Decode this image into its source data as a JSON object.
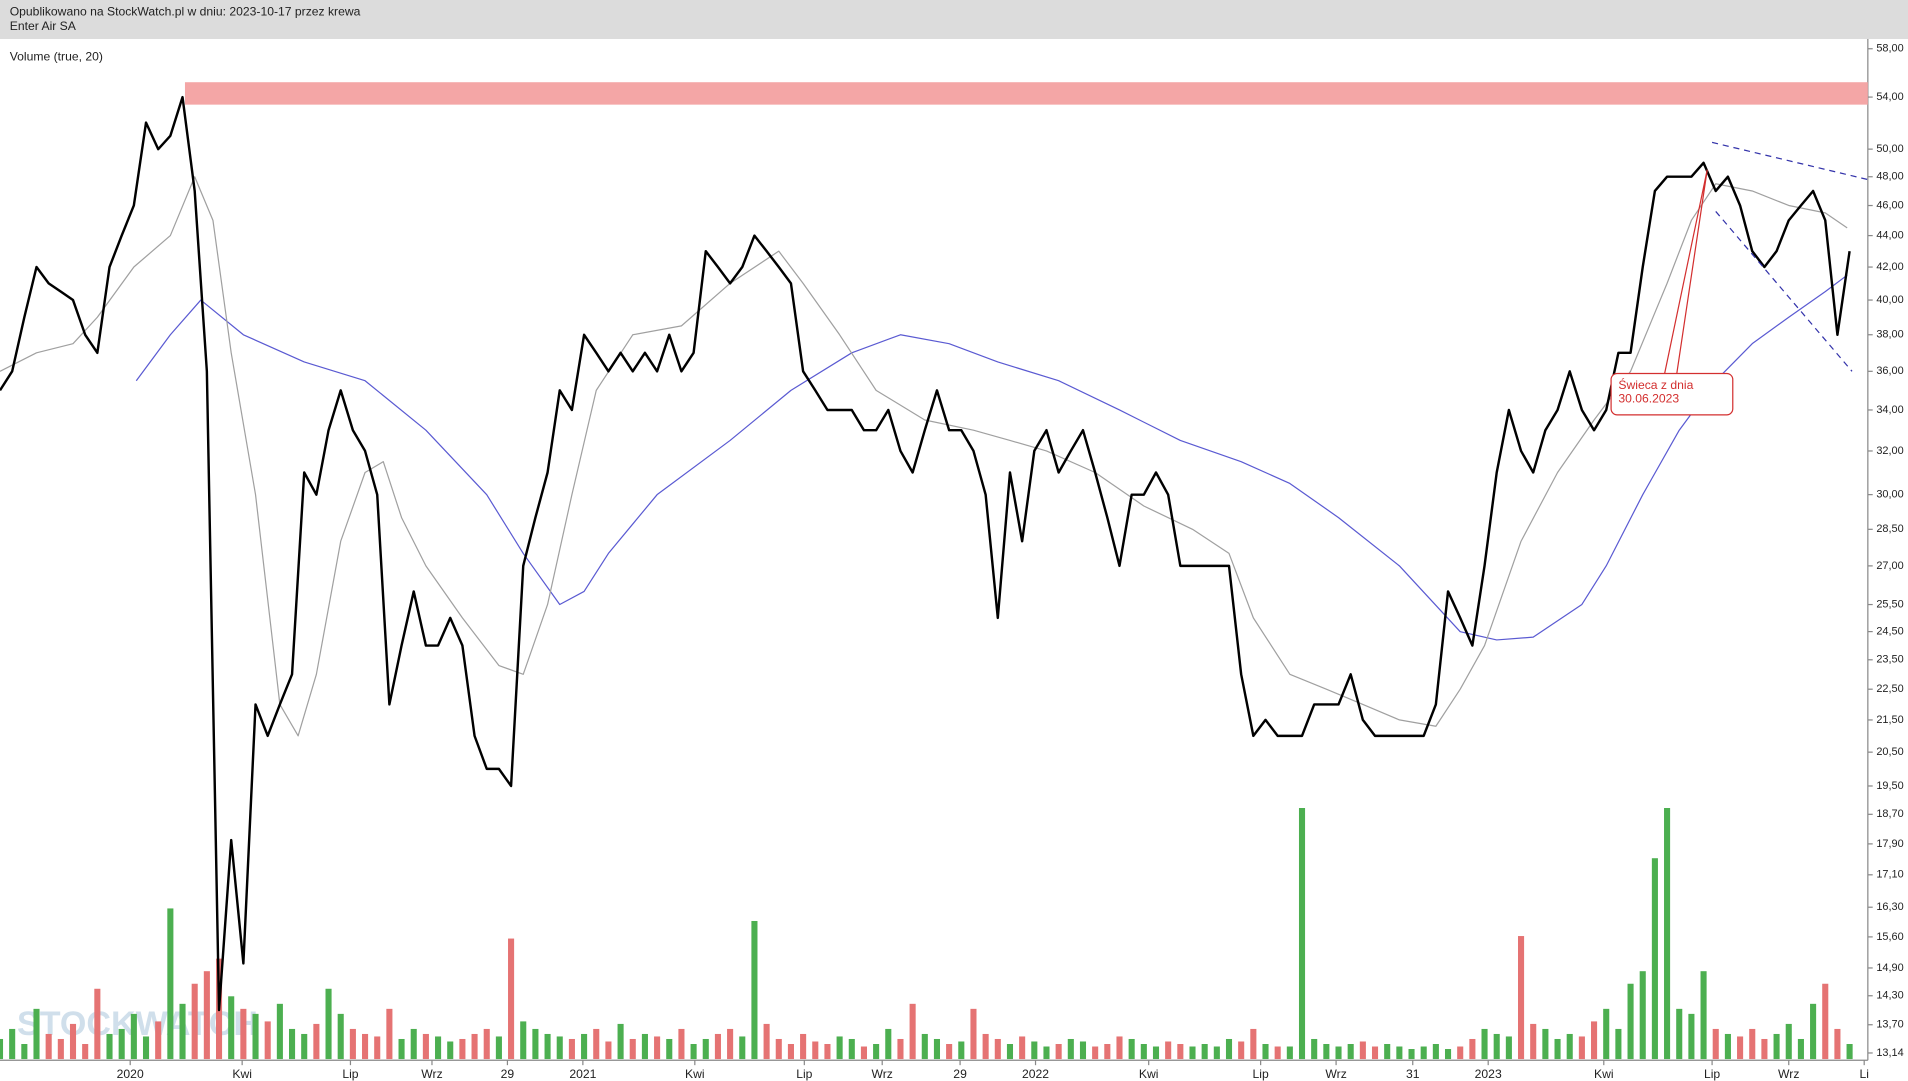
{
  "header": {
    "line1": "Opublikowano na StockWatch.pl w dniu: 2023-10-17 przez krewa",
    "line2": "Enter Air SA"
  },
  "chart_data": {
    "type": "line",
    "indicator": "Volume (true, 20)",
    "watermark": "STOCKWATCH",
    "log_y": true,
    "ylim": [
      13.14,
      58
    ],
    "xlim": [
      0,
      153.5
    ],
    "yticks": [
      {
        "value": 58,
        "label": "58,00"
      },
      {
        "value": 54,
        "label": "54,00"
      },
      {
        "value": 50,
        "label": "50,00"
      },
      {
        "value": 48,
        "label": "48,00"
      },
      {
        "value": 46,
        "label": "46,00"
      },
      {
        "value": 44,
        "label": "44,00"
      },
      {
        "value": 42,
        "label": "42,00"
      },
      {
        "value": 40,
        "label": "40,00"
      },
      {
        "value": 38,
        "label": "38,00"
      },
      {
        "value": 36,
        "label": "36,00"
      },
      {
        "value": 34,
        "label": "34,00"
      },
      {
        "value": 32,
        "label": "32,00"
      },
      {
        "value": 30,
        "label": "30,00"
      },
      {
        "value": 28.5,
        "label": "28,50"
      },
      {
        "value": 27,
        "label": "27,00"
      },
      {
        "value": 25.5,
        "label": "25,50"
      },
      {
        "value": 24.5,
        "label": "24,50"
      },
      {
        "value": 23.5,
        "label": "23,50"
      },
      {
        "value": 22.5,
        "label": "22,50"
      },
      {
        "value": 21.5,
        "label": "21,50"
      },
      {
        "value": 20.5,
        "label": "20,50"
      },
      {
        "value": 19.5,
        "label": "19,50"
      },
      {
        "value": 18.7,
        "label": "18,70"
      },
      {
        "value": 17.9,
        "label": "17,90"
      },
      {
        "value": 17.1,
        "label": "17,10"
      },
      {
        "value": 16.3,
        "label": "16,30"
      },
      {
        "value": 15.6,
        "label": "15,60"
      },
      {
        "value": 14.9,
        "label": "14,90"
      },
      {
        "value": 14.3,
        "label": "14,30"
      },
      {
        "value": 13.7,
        "label": "13,70"
      },
      {
        "value": 13.14,
        "label": "13,14"
      }
    ],
    "xticks": [
      {
        "value": 10.7,
        "label": "2020"
      },
      {
        "value": 19.9,
        "label": "Kwi"
      },
      {
        "value": 28.8,
        "label": "Lip"
      },
      {
        "value": 35.5,
        "label": "Wrz"
      },
      {
        "value": 41.7,
        "label": "29"
      },
      {
        "value": 47.9,
        "label": "2021"
      },
      {
        "value": 57.1,
        "label": "Kwi"
      },
      {
        "value": 66.1,
        "label": "Lip"
      },
      {
        "value": 72.5,
        "label": "Wrz"
      },
      {
        "value": 78.9,
        "label": "29"
      },
      {
        "value": 85.1,
        "label": "2022"
      },
      {
        "value": 94.4,
        "label": "Kwi"
      },
      {
        "value": 103.6,
        "label": "Lip"
      },
      {
        "value": 109.8,
        "label": "Wrz"
      },
      {
        "value": 116.1,
        "label": "31"
      },
      {
        "value": 122.3,
        "label": "2023"
      },
      {
        "value": 131.8,
        "label": "Kwi"
      },
      {
        "value": 140.7,
        "label": "Lip"
      },
      {
        "value": 147,
        "label": "Wrz"
      },
      {
        "value": 153.2,
        "label": "Li"
      }
    ],
    "series": [
      {
        "color": "#000000",
        "width": 2,
        "values": [
          35,
          36,
          39,
          42,
          41,
          40.5,
          40,
          38,
          37,
          42,
          44,
          46,
          52,
          50,
          51,
          54,
          47,
          36,
          14,
          18,
          15,
          22,
          21,
          22,
          23,
          31,
          30,
          33,
          35,
          33,
          32,
          30,
          22,
          24,
          26,
          24,
          24,
          25,
          24,
          21,
          20,
          20,
          19.5,
          27,
          29,
          31,
          35,
          34,
          38,
          37,
          36,
          37,
          36,
          37,
          36,
          38,
          36,
          37,
          43,
          42,
          41,
          42,
          44,
          43,
          42,
          41,
          36,
          35,
          34,
          34,
          34,
          33,
          33,
          34,
          32,
          31,
          33,
          35,
          33,
          33,
          32,
          30,
          25,
          31,
          28,
          32,
          33,
          31,
          32,
          33,
          31,
          29,
          27,
          30,
          30,
          31,
          30,
          27,
          27,
          27,
          27,
          27,
          23,
          21,
          21.5,
          21,
          21,
          21,
          22,
          22,
          22,
          23,
          21.5,
          21,
          21,
          21,
          21,
          21,
          22,
          26,
          25,
          24,
          27,
          31,
          34,
          32,
          31,
          33,
          34,
          36,
          34,
          33,
          34,
          37,
          37,
          42,
          47,
          48,
          48,
          48,
          49,
          47,
          48,
          46,
          43,
          42,
          43,
          45,
          46,
          47,
          45,
          38,
          43
        ]
      },
      {
        "color": "#a0a0a0",
        "width": 1,
        "x": [
          0,
          3,
          6,
          8,
          11,
          14,
          16,
          17.5,
          19,
          21,
          23,
          24.5,
          26,
          28,
          30,
          31.5,
          33,
          35,
          38,
          41,
          43,
          45,
          47,
          49,
          52,
          56,
          60,
          64,
          66,
          69,
          72,
          76,
          80,
          83,
          86,
          90,
          94,
          98,
          101,
          103,
          106,
          109,
          112,
          115,
          118,
          120,
          122,
          125,
          128,
          131,
          134,
          137,
          139,
          141,
          144,
          147,
          150,
          151.8
        ],
        "values": [
          36,
          37,
          37.5,
          39,
          42,
          44,
          48,
          45,
          37,
          30,
          22,
          21,
          23,
          28,
          31,
          31.5,
          29,
          27,
          25,
          23.3,
          23,
          25.5,
          30,
          35,
          38,
          38.5,
          41,
          43,
          41,
          38,
          35,
          33.5,
          33,
          32.5,
          32,
          31,
          29.5,
          28.5,
          27.5,
          25,
          23,
          22.5,
          22,
          21.5,
          21.3,
          22.5,
          24,
          28,
          31,
          33.5,
          36,
          41,
          45,
          47.5,
          47,
          46,
          45.5,
          44.5
        ]
      },
      {
        "color": "#5a5ad2",
        "width": 1,
        "x": [
          11.2,
          14,
          16.5,
          20,
          25,
          30,
          35,
          40,
          43,
          46,
          48,
          50,
          54,
          60,
          65,
          70,
          74,
          78,
          82,
          87,
          92,
          97,
          102,
          106,
          110,
          115,
          120,
          123,
          126,
          130,
          132,
          135,
          138,
          141,
          144,
          147,
          150,
          151.8
        ],
        "values": [
          35.5,
          38,
          40,
          38,
          36.5,
          35.5,
          33,
          30,
          27.5,
          25.5,
          26,
          27.5,
          30,
          32.5,
          35,
          37,
          38,
          37.5,
          36.5,
          35.5,
          34,
          32.5,
          31.5,
          30.5,
          29,
          27,
          24.5,
          24.2,
          24.3,
          25.5,
          27,
          30,
          33,
          35.5,
          37.5,
          39,
          40.5,
          41.5
        ]
      }
    ],
    "volume": {
      "up_color": "#4caf50",
      "down_color": "#e57373",
      "values": [
        8,
        12,
        6,
        20,
        10,
        8,
        14,
        6,
        28,
        10,
        12,
        18,
        9,
        15,
        60,
        22,
        30,
        35,
        40,
        25,
        20,
        18,
        15,
        22,
        12,
        10,
        14,
        28,
        18,
        12,
        10,
        9,
        20,
        8,
        12,
        10,
        9,
        7,
        8,
        10,
        12,
        9,
        48,
        15,
        12,
        10,
        9,
        8,
        10,
        12,
        7,
        14,
        8,
        10,
        9,
        8,
        12,
        6,
        8,
        10,
        12,
        9,
        55,
        14,
        8,
        6,
        10,
        7,
        6,
        9,
        8,
        5,
        6,
        12,
        8,
        22,
        10,
        8,
        6,
        7,
        20,
        10,
        8,
        6,
        9,
        7,
        5,
        6,
        8,
        7,
        5,
        6,
        9,
        8,
        6,
        5,
        7,
        6,
        5,
        6,
        5,
        8,
        7,
        12,
        6,
        5,
        5,
        100,
        8,
        6,
        5,
        6,
        7,
        5,
        6,
        5,
        4,
        5,
        6,
        4,
        5,
        8,
        12,
        10,
        9,
        49,
        14,
        12,
        8,
        10,
        9,
        15,
        20,
        12,
        30,
        35,
        80,
        100,
        20,
        18,
        35,
        12,
        10,
        9,
        12,
        8,
        10,
        14,
        8,
        22,
        30,
        12,
        6
      ]
    },
    "band": {
      "x0": 15.2,
      "y": [
        53.4,
        55.2
      ],
      "color": "#f4a6a6"
    },
    "trendlines": [
      {
        "x": [
          140.7,
          153.5
        ],
        "y": [
          50.5,
          47.8
        ]
      },
      {
        "x": [
          141,
          152.2
        ],
        "y": [
          45.6,
          36
        ]
      }
    ],
    "annotation": {
      "lines": [
        "Świeca z dnia",
        "30.06.2023"
      ],
      "target_x": 140.3,
      "target_y": 48.5,
      "box_x": 133,
      "box_y": 35.5
    }
  }
}
